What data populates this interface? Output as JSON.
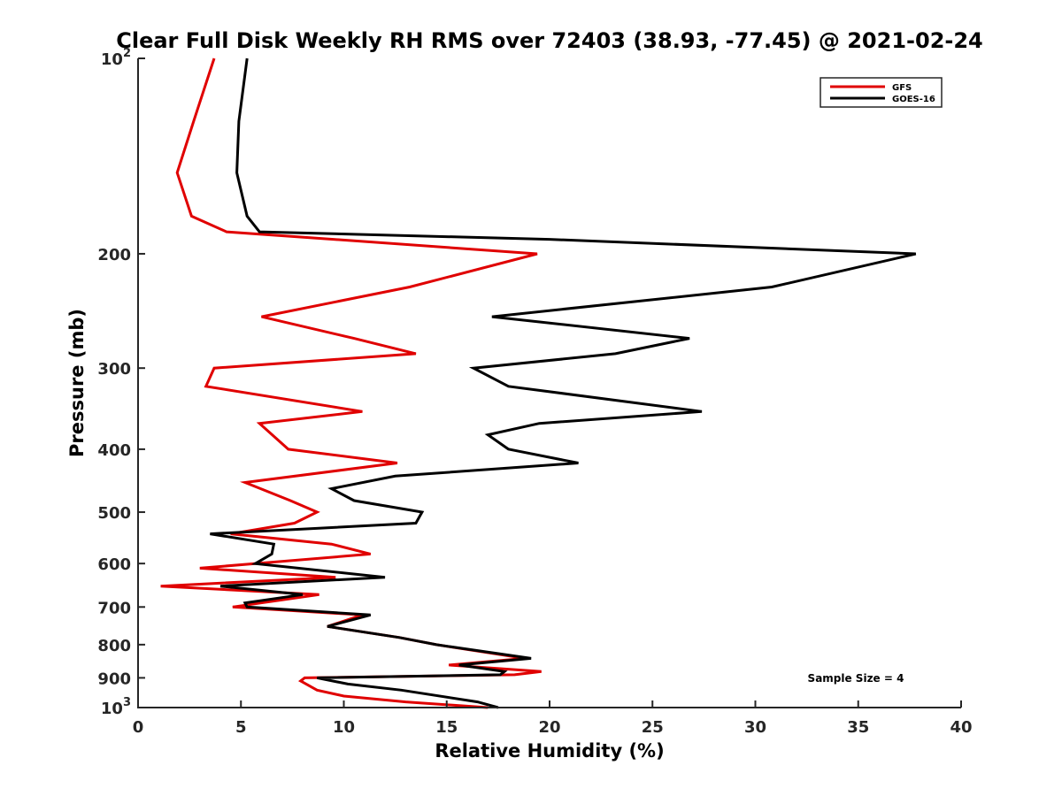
{
  "chart_data": {
    "type": "line",
    "title": "Clear Full Disk Weekly RH RMS over 72403 (38.93, -77.45) @ 2021-02-24",
    "xlabel": "Relative Humidity (%)",
    "ylabel": "Pressure (mb)",
    "xlim": [
      0,
      40
    ],
    "ylim": [
      100,
      1000
    ],
    "y_scale": "log",
    "y_reversed": true,
    "x_ticks": [
      "0",
      "5",
      "10",
      "15",
      "20",
      "25",
      "30",
      "35",
      "40"
    ],
    "y_ticks": [
      {
        "value": 100,
        "base": "10",
        "exp": "2"
      },
      {
        "value": 200,
        "label": "200"
      },
      {
        "value": 300,
        "label": "300"
      },
      {
        "value": 400,
        "label": "400"
      },
      {
        "value": 500,
        "label": "500"
      },
      {
        "value": 600,
        "label": "600"
      },
      {
        "value": 700,
        "label": "700"
      },
      {
        "value": 800,
        "label": "800"
      },
      {
        "value": 900,
        "label": "900"
      },
      {
        "value": 1000,
        "base": "10",
        "exp": "3"
      }
    ],
    "grid": false,
    "legend_position": "top-right",
    "annotation": "Sample Size = 4",
    "series": [
      {
        "name": "GFS",
        "color": "#e00000",
        "points": [
          [
            3.7,
            100
          ],
          [
            2.7,
            125
          ],
          [
            1.9,
            150
          ],
          [
            2.6,
            175
          ],
          [
            4.3,
            185
          ],
          [
            9.5,
            190
          ],
          [
            19.4,
            200
          ],
          [
            13.2,
            225
          ],
          [
            6.0,
            250
          ],
          [
            10.5,
            270
          ],
          [
            13.5,
            285
          ],
          [
            3.7,
            300
          ],
          [
            3.3,
            320
          ],
          [
            10.9,
            350
          ],
          [
            5.9,
            365
          ],
          [
            7.3,
            400
          ],
          [
            12.6,
            420
          ],
          [
            5.2,
            450
          ],
          [
            7.4,
            480
          ],
          [
            8.7,
            500
          ],
          [
            7.6,
            520
          ],
          [
            4.5,
            540
          ],
          [
            9.4,
            560
          ],
          [
            11.3,
            580
          ],
          [
            3.0,
            610
          ],
          [
            9.6,
            630
          ],
          [
            1.1,
            650
          ],
          [
            8.8,
            670
          ],
          [
            4.6,
            700
          ],
          [
            10.9,
            720
          ],
          [
            9.2,
            750
          ],
          [
            12.7,
            780
          ],
          [
            14.5,
            800
          ],
          [
            18.8,
            840
          ],
          [
            15.1,
            860
          ],
          [
            19.6,
            880
          ],
          [
            18.3,
            890
          ],
          [
            8.1,
            900
          ],
          [
            7.9,
            910
          ],
          [
            8.7,
            940
          ],
          [
            10.0,
            960
          ],
          [
            13.0,
            980
          ],
          [
            17.0,
            1000
          ]
        ]
      },
      {
        "name": "GOES-16",
        "color": "#000000",
        "points": [
          [
            5.3,
            100
          ],
          [
            4.9,
            125
          ],
          [
            4.8,
            150
          ],
          [
            5.3,
            175
          ],
          [
            5.9,
            185
          ],
          [
            20.0,
            190
          ],
          [
            37.8,
            200
          ],
          [
            30.8,
            225
          ],
          [
            17.2,
            250
          ],
          [
            26.8,
            270
          ],
          [
            23.2,
            285
          ],
          [
            16.3,
            300
          ],
          [
            18.0,
            320
          ],
          [
            27.4,
            350
          ],
          [
            19.5,
            365
          ],
          [
            17.0,
            380
          ],
          [
            18.0,
            400
          ],
          [
            21.4,
            420
          ],
          [
            12.5,
            440
          ],
          [
            9.4,
            460
          ],
          [
            10.5,
            480
          ],
          [
            13.8,
            500
          ],
          [
            13.5,
            520
          ],
          [
            3.5,
            540
          ],
          [
            6.6,
            560
          ],
          [
            6.5,
            580
          ],
          [
            5.7,
            600
          ],
          [
            12.0,
            630
          ],
          [
            4.0,
            650
          ],
          [
            8.0,
            670
          ],
          [
            5.2,
            690
          ],
          [
            5.3,
            700
          ],
          [
            11.3,
            720
          ],
          [
            9.2,
            750
          ],
          [
            12.7,
            780
          ],
          [
            14.5,
            800
          ],
          [
            19.1,
            840
          ],
          [
            15.6,
            860
          ],
          [
            17.8,
            880
          ],
          [
            17.6,
            890
          ],
          [
            8.7,
            900
          ],
          [
            10.2,
            920
          ],
          [
            12.8,
            940
          ],
          [
            16.5,
            980
          ],
          [
            17.5,
            1000
          ]
        ]
      }
    ]
  }
}
